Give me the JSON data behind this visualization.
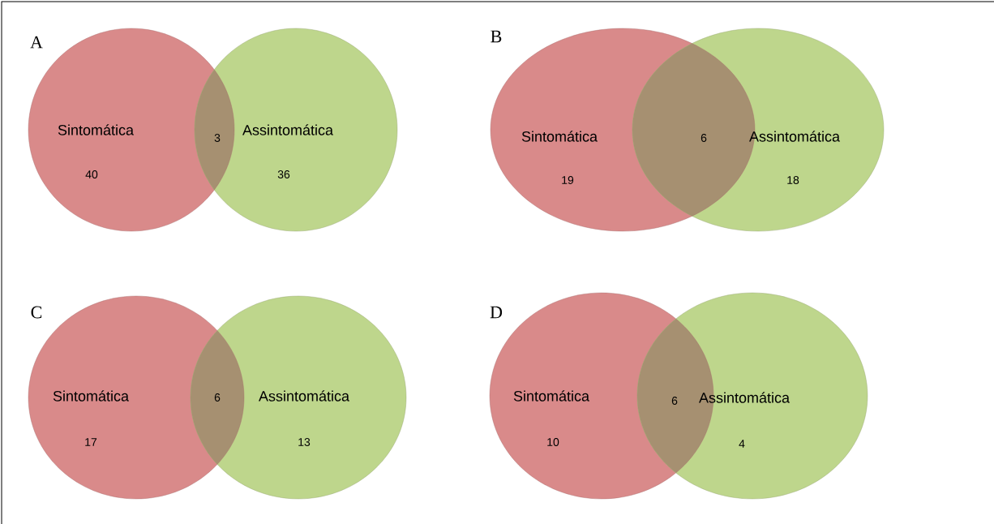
{
  "chart_data": [
    {
      "type": "other",
      "title": "A",
      "categories": [
        "Sintomática",
        "Assintomática"
      ],
      "values": [
        40,
        36
      ],
      "colors": [
        "#d98a8a",
        "#bed68c"
      ],
      "data_labels": true,
      "annotations": [
        "3"
      ]
    },
    {
      "type": "other",
      "title": "B",
      "categories": [
        "Sintomática",
        "Assintomática"
      ],
      "values": [
        19,
        18
      ],
      "colors": [
        "#d98a8a",
        "#bed68c"
      ],
      "data_labels": true,
      "annotations": [
        "6"
      ]
    },
    {
      "type": "other",
      "title": "C",
      "categories": [
        "Sintomática",
        "Assintomática"
      ],
      "values": [
        17,
        13
      ],
      "colors": [
        "#d98a8a",
        "#bed68c"
      ],
      "data_labels": true,
      "annotations": [
        "6"
      ]
    },
    {
      "type": "other",
      "title": "D",
      "categories": [
        "Sintomática",
        "Assintomática"
      ],
      "values": [
        10,
        4
      ],
      "colors": [
        "#d98a8a",
        "#bed68c"
      ],
      "data_labels": true,
      "annotations": [
        "6"
      ]
    }
  ]
}
